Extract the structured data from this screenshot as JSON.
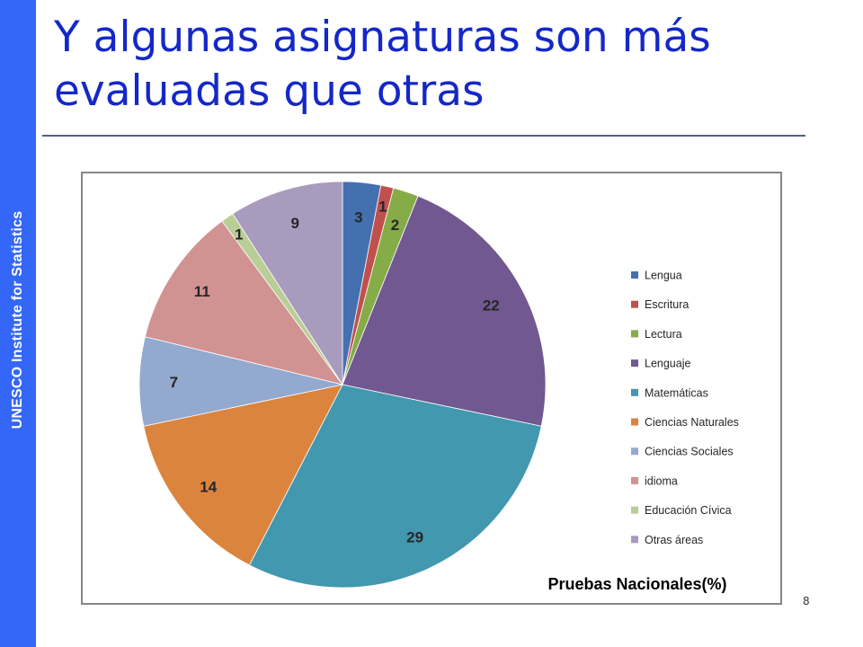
{
  "sidebar": {
    "label": "UNESCO Institute for Statistics",
    "color": "#3467f7"
  },
  "slide": {
    "title": "Y algunas asignaturas son más evaluadas que otras",
    "page_number": "8"
  },
  "chart_data": {
    "type": "pie",
    "title": "Pruebas Nacionales(%)",
    "start_angle_deg": 0,
    "direction": "clockwise",
    "legend_position": "right",
    "categories": [
      "Lengua",
      "Escritura",
      "Lectura",
      "Lenguaje",
      "Matemáticas",
      "Ciencias Naturales",
      "Ciencias Sociales",
      "idioma",
      "Educación Cívica",
      "Otras áreas"
    ],
    "values": [
      3,
      1,
      2,
      22,
      29,
      14,
      7,
      11,
      1,
      9
    ],
    "colors": [
      "#4470b0",
      "#c0504d",
      "#86ac47",
      "#715891",
      "#4298ae",
      "#db843d",
      "#93a9cf",
      "#d19392",
      "#b9cd96",
      "#a99bbd"
    ]
  }
}
